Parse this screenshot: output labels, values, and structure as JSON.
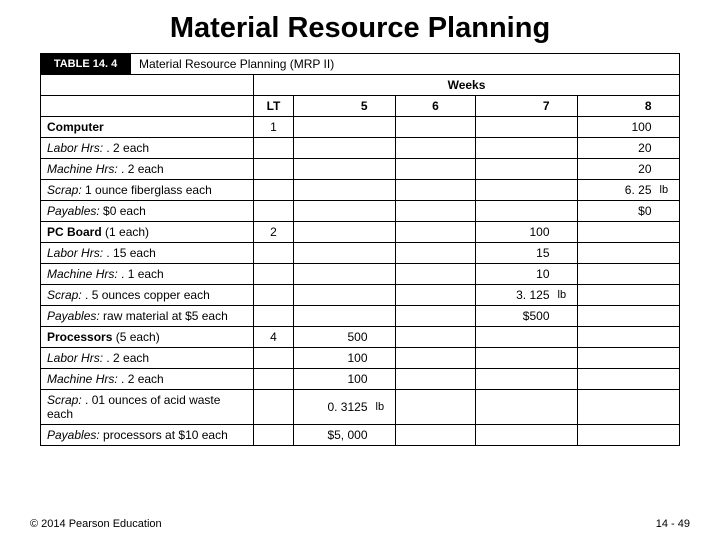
{
  "title": "Material Resource Planning",
  "table_number": "TABLE 14. 4",
  "table_caption": "Material Resource Planning (MRP II)",
  "weeks_label": "Weeks",
  "headers": {
    "lt": "LT",
    "w5": "5",
    "w6": "6",
    "w7": "7",
    "w8": "8"
  },
  "rows": {
    "computer": {
      "desc_b": "Computer",
      "desc": "",
      "lt": "1",
      "w8": "100"
    },
    "computer_labor": {
      "desc_i": "Labor Hrs:",
      "desc": " . 2 each",
      "w8": "20"
    },
    "computer_mach": {
      "desc_i": "Machine Hrs:",
      "desc": " . 2 each",
      "w8": "20"
    },
    "computer_scrap": {
      "desc_i": "Scrap:",
      "desc": " 1 ounce fiberglass each",
      "w8": "6. 25",
      "unit": "lb"
    },
    "computer_pay": {
      "desc_i": "Payables:",
      "desc": " $0 each",
      "w8": "$0"
    },
    "pcb": {
      "desc_b": "PC Board",
      "desc": " (1 each)",
      "lt": "2",
      "w7": "100"
    },
    "pcb_labor": {
      "desc_i": "Labor Hrs:",
      "desc": " . 15 each",
      "w7": "15"
    },
    "pcb_mach": {
      "desc_i": "Machine Hrs:",
      "desc": " . 1 each",
      "w7": "10"
    },
    "pcb_scrap": {
      "desc_i": "Scrap:",
      "desc": " . 5 ounces copper each",
      "w7": "3. 125",
      "unit": "lb"
    },
    "pcb_pay": {
      "desc_i": "Payables:",
      "desc": " raw material at $5 each",
      "w7": "$500"
    },
    "proc": {
      "desc_b": "Processors",
      "desc": " (5 each)",
      "lt": "4",
      "w5": "500"
    },
    "proc_labor": {
      "desc_i": "Labor Hrs:",
      "desc": " . 2 each",
      "w5": "100"
    },
    "proc_mach": {
      "desc_i": "Machine Hrs:",
      "desc": " . 2 each",
      "w5": "100"
    },
    "proc_scrap": {
      "desc_i": "Scrap:",
      "desc": " . 01 ounces of acid waste each",
      "w5": "0. 3125",
      "unit": "lb"
    },
    "proc_pay": {
      "desc_i": "Payables:",
      "desc": " processors at $10 each",
      "w5": "$5, 000"
    }
  },
  "copyright": "© 2014 Pearson Education",
  "page": "14 - 49",
  "colors": {
    "black": "#000000",
    "white": "#ffffff"
  }
}
